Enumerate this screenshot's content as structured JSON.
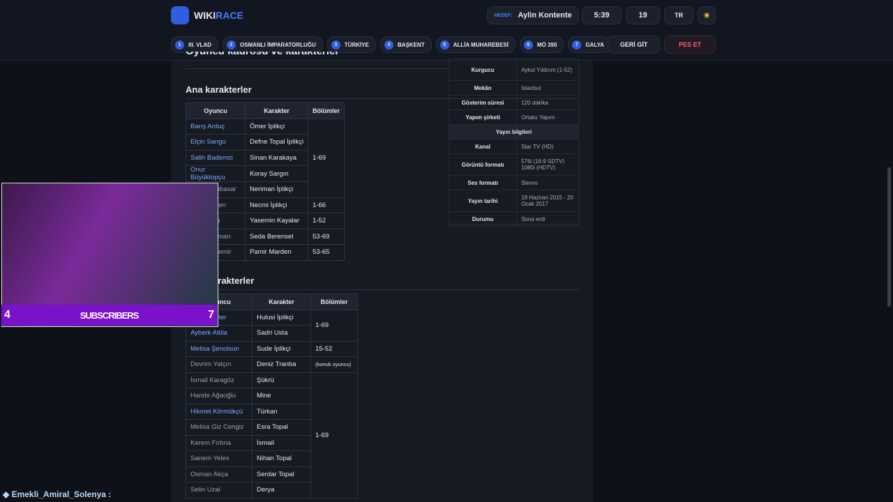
{
  "header": {
    "logo_a": "WIKI",
    "logo_b": "RACE",
    "target_label": "HEDEF:",
    "target": "Aylin Kontente",
    "timer": "5:39",
    "clicks": "19",
    "lang": "TR"
  },
  "breadcrumbs": [
    {
      "num": "1",
      "label": "III. VLAD"
    },
    {
      "num": "2",
      "label": "OSMANLI İMPARATORLUĞU"
    },
    {
      "num": "3",
      "label": "TÜRKİYE"
    },
    {
      "num": "4",
      "label": "BAŞKENT"
    },
    {
      "num": "5",
      "label": "ALLİA MUHAREBESİ"
    },
    {
      "num": "6",
      "label": "MÖ 390"
    },
    {
      "num": "7",
      "label": "GALYA"
    }
  ],
  "buttons": {
    "back": "GERİ GİT",
    "give_up": "PES ET"
  },
  "article": {
    "section_title": "Oyuncu kadrosu ve karakterler",
    "main_heading": "Ana karakterler",
    "support_heading": "Yardımcı karakterler",
    "columns": [
      "Oyuncu",
      "Karakter",
      "Bölümler"
    ],
    "main_rows": [
      [
        "Barış Arduç",
        "Ömer İplikçi",
        "1-69"
      ],
      [
        "Elçin Sangu",
        "Defne Topal İplikçi",
        null
      ],
      [
        "Salih Bademci",
        "Sinan Karakaya",
        null
      ],
      [
        "Onur Büyüktopçu",
        "Koray Sargın",
        null
      ],
      [
        "mbasar",
        "Neriman İplikçi",
        null
      ],
      [
        "gen",
        "Necmi İplikçi",
        "1-66"
      ],
      [
        "lu",
        "Yasemin Kayalar",
        "1-52"
      ],
      [
        "man",
        "Seda Berensel",
        "53-69"
      ],
      [
        "zdemir",
        "Pamir Marden",
        "53-65"
      ]
    ],
    "support_rows": [
      [
        "Ferdi Merter",
        "Hulusi İplikçi",
        "1-69"
      ],
      [
        "Ayberk Attila",
        "Sadri Usta",
        null
      ],
      [
        "Melisa Şenolsun",
        "Sude İplikçi",
        "15-52"
      ],
      [
        "Devrim Yalçın",
        "Deniz Tranba",
        "(konuk oyuncu)"
      ],
      [
        "İsmail Karagöz",
        "Şükrü",
        "1-69"
      ],
      [
        "Hande Ağaoğlu",
        "Mine",
        null
      ],
      [
        "Hikmet Körmükçü",
        "Türkan",
        null
      ],
      [
        "Melisa Giz Cengiz",
        "Esra Topal",
        null
      ],
      [
        "Kerem Fırtına",
        "İsmail",
        null
      ],
      [
        "Sanem Yeles",
        "Nihan Topal",
        null
      ],
      [
        "Osman Akça",
        "Serdar Topal",
        null
      ],
      [
        "Selin Uzal",
        "Derya",
        null
      ]
    ],
    "infobox": [
      [
        "Kurgucu",
        "Aykut Yıldırım (1-52)"
      ],
      [
        "Mekân",
        "İstanbul"
      ],
      [
        "Gösterim süresi",
        "120 dakika"
      ],
      [
        "Yapım şirketi",
        "Ortaks Yapım"
      ],
      [
        "Yayın bilgileri"
      ],
      [
        "Kanal",
        "Star TV (HD)"
      ],
      [
        "Görüntü formatı",
        "576i (16:9 SDTV) 1080i (HDTV)"
      ],
      [
        "Ses formatı",
        "Stereo"
      ],
      [
        "Yayın tarihi",
        "19 Haziran 2015 - 20 Ocak 2017"
      ],
      [
        "Durumu",
        "Sona erdi"
      ]
    ]
  },
  "overlay": {
    "left": "4",
    "banner": "SUBSCRIBERS",
    "right": "7"
  },
  "chat": {
    "user": "Emekli_Amiral_Solenya :"
  }
}
